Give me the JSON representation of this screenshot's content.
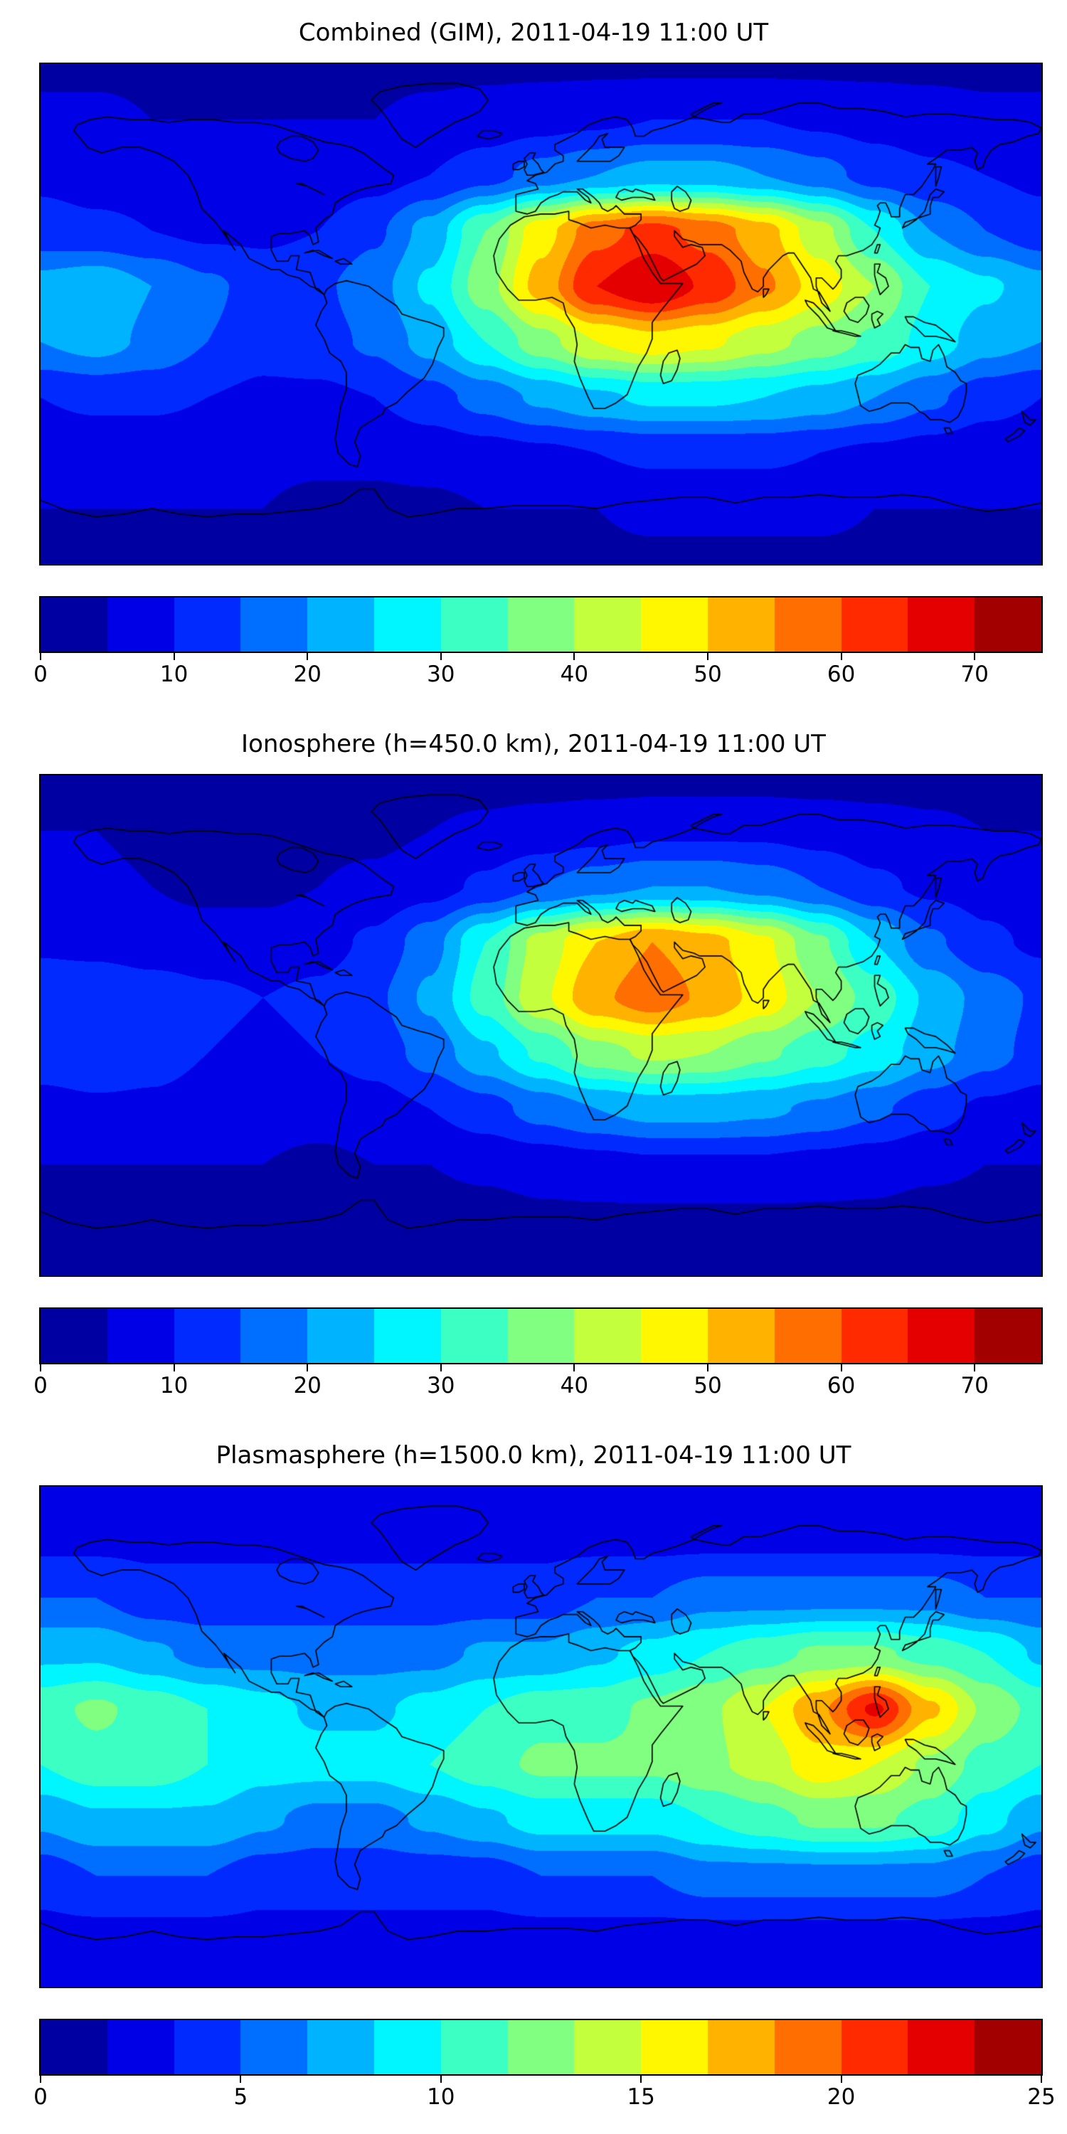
{
  "figure": {
    "background": "#ffffff",
    "coastline_color": "#000000"
  },
  "chart_data": [
    {
      "type": "heatmap",
      "title": "Combined (GIM), 2011-04-19 11:00 UT",
      "colormap": "jet",
      "vmin": 0,
      "vmax": 75,
      "n_levels": 15,
      "colorbar_ticks": [
        0,
        10,
        20,
        30,
        40,
        50,
        60,
        70
      ],
      "lon_range": [
        -180,
        180
      ],
      "lat_range": [
        -90,
        90
      ],
      "lat": [
        90,
        70,
        50,
        30,
        10,
        -10,
        -30,
        -50,
        -70,
        -90
      ],
      "lon": [
        -180,
        -160,
        -140,
        -120,
        -100,
        -80,
        -60,
        -40,
        -20,
        0,
        20,
        40,
        60,
        80,
        100,
        120,
        140,
        160,
        180
      ],
      "values": [
        [
          4,
          4,
          4,
          4,
          4,
          4,
          4,
          4,
          4,
          4,
          4,
          4,
          4,
          4,
          4,
          4,
          4,
          4,
          4
        ],
        [
          6,
          6,
          5,
          5,
          5,
          5,
          5,
          6,
          7,
          8,
          9,
          10,
          10,
          10,
          9,
          8,
          7,
          6,
          6
        ],
        [
          9,
          8,
          8,
          7,
          7,
          7,
          8,
          10,
          13,
          17,
          20,
          22,
          22,
          20,
          17,
          13,
          11,
          10,
          9
        ],
        [
          12,
          11,
          10,
          9,
          9,
          10,
          14,
          22,
          35,
          48,
          58,
          62,
          58,
          52,
          42,
          30,
          20,
          15,
          12
        ],
        [
          22,
          24,
          20,
          16,
          13,
          14,
          18,
          26,
          38,
          52,
          65,
          70,
          64,
          56,
          48,
          40,
          30,
          26,
          22
        ],
        [
          20,
          22,
          19,
          15,
          12,
          13,
          16,
          22,
          30,
          38,
          45,
          48,
          46,
          42,
          38,
          34,
          28,
          22,
          20
        ],
        [
          10,
          11,
          11,
          10,
          9,
          9,
          10,
          13,
          17,
          21,
          24,
          26,
          26,
          25,
          23,
          20,
          16,
          12,
          10
        ],
        [
          7,
          7,
          7,
          7,
          6,
          6,
          6,
          7,
          8,
          9,
          10,
          11,
          11,
          11,
          10,
          9,
          8,
          7,
          7
        ],
        [
          5,
          5,
          5,
          5,
          5,
          4,
          4,
          4,
          5,
          5,
          5,
          6,
          6,
          6,
          6,
          5,
          5,
          5,
          5
        ],
        [
          4,
          4,
          4,
          4,
          4,
          4,
          4,
          4,
          4,
          4,
          4,
          4,
          4,
          4,
          4,
          4,
          4,
          4,
          4
        ]
      ]
    },
    {
      "type": "heatmap",
      "title": "Ionosphere  (h=450.0 km), 2011-04-19 11:00 UT",
      "colormap": "jet",
      "vmin": 0,
      "vmax": 75,
      "n_levels": 15,
      "colorbar_ticks": [
        0,
        10,
        20,
        30,
        40,
        50,
        60,
        70
      ],
      "lon_range": [
        -180,
        180
      ],
      "lat_range": [
        -90,
        90
      ],
      "lat": [
        90,
        70,
        50,
        30,
        10,
        -10,
        -30,
        -50,
        -70,
        -90
      ],
      "lon": [
        -180,
        -160,
        -140,
        -120,
        -100,
        -80,
        -60,
        -40,
        -20,
        0,
        20,
        40,
        60,
        80,
        100,
        120,
        140,
        160,
        180
      ],
      "values": [
        [
          3,
          3,
          3,
          3,
          3,
          3,
          3,
          3,
          3,
          3,
          3,
          3,
          3,
          3,
          3,
          3,
          3,
          3,
          3
        ],
        [
          5,
          5,
          4,
          4,
          4,
          4,
          4,
          5,
          6,
          7,
          8,
          9,
          9,
          9,
          8,
          7,
          6,
          5,
          5
        ],
        [
          7,
          6,
          5,
          4,
          4,
          5,
          6,
          8,
          11,
          15,
          18,
          20,
          20,
          18,
          15,
          11,
          9,
          8,
          7
        ],
        [
          9,
          8,
          7,
          7,
          7,
          8,
          11,
          18,
          30,
          42,
          50,
          55,
          52,
          46,
          36,
          25,
          16,
          11,
          9
        ],
        [
          14,
          15,
          13,
          11,
          10,
          11,
          14,
          21,
          32,
          44,
          54,
          58,
          54,
          48,
          40,
          33,
          24,
          18,
          14
        ],
        [
          13,
          14,
          12,
          10,
          9,
          10,
          12,
          17,
          24,
          31,
          38,
          41,
          40,
          36,
          32,
          28,
          22,
          17,
          13
        ],
        [
          8,
          9,
          9,
          8,
          7,
          7,
          8,
          10,
          13,
          17,
          20,
          22,
          22,
          21,
          19,
          16,
          12,
          9,
          8
        ],
        [
          5,
          5,
          5,
          5,
          5,
          4,
          5,
          5,
          6,
          7,
          8,
          9,
          9,
          9,
          8,
          7,
          6,
          5,
          5
        ],
        [
          3,
          3,
          3,
          3,
          3,
          3,
          3,
          3,
          3,
          4,
          4,
          4,
          4,
          4,
          4,
          4,
          3,
          3,
          3
        ],
        [
          3,
          3,
          3,
          3,
          3,
          3,
          3,
          3,
          3,
          3,
          3,
          3,
          3,
          3,
          3,
          3,
          3,
          3,
          3
        ]
      ]
    },
    {
      "type": "heatmap",
      "title": "Plasmasphere (h=1500.0 km), 2011-04-19 11:00 UT",
      "colormap": "jet",
      "vmin": 0,
      "vmax": 25,
      "n_levels": 15,
      "colorbar_ticks": [
        0,
        5,
        10,
        15,
        20,
        25
      ],
      "lon_range": [
        -180,
        180
      ],
      "lat_range": [
        -90,
        90
      ],
      "lat": [
        90,
        70,
        50,
        30,
        10,
        -10,
        -30,
        -50,
        -70,
        -90
      ],
      "lon": [
        -180,
        -160,
        -140,
        -120,
        -100,
        -80,
        -60,
        -40,
        -20,
        0,
        20,
        40,
        60,
        80,
        100,
        120,
        140,
        160,
        180
      ],
      "values": [
        [
          2,
          2,
          2,
          2,
          2,
          2,
          2,
          2,
          2,
          2,
          2,
          2,
          2,
          2,
          2,
          2,
          2,
          2,
          2
        ],
        [
          3,
          3,
          3,
          3,
          3,
          3,
          3,
          3,
          3,
          3,
          3,
          3,
          3,
          3,
          3,
          3,
          3,
          3,
          3
        ],
        [
          5,
          5,
          4,
          4,
          4,
          4,
          4,
          4,
          4,
          4,
          5,
          5,
          6,
          6,
          6,
          6,
          6,
          5,
          5
        ],
        [
          8,
          8,
          7,
          6,
          6,
          6,
          6,
          6,
          7,
          7,
          8,
          9,
          10,
          11,
          12,
          12,
          11,
          10,
          8
        ],
        [
          11,
          12,
          11,
          10,
          9,
          8,
          8,
          9,
          10,
          11,
          11,
          12,
          13,
          15,
          18,
          22,
          17,
          13,
          11
        ],
        [
          10,
          11,
          11,
          10,
          9,
          9,
          9,
          10,
          11,
          12,
          12,
          12,
          13,
          14,
          16,
          15,
          13,
          11,
          10
        ],
        [
          7,
          8,
          8,
          8,
          7,
          6,
          6,
          7,
          8,
          9,
          9,
          9,
          10,
          11,
          12,
          12,
          11,
          9,
          7
        ],
        [
          4,
          5,
          5,
          5,
          4,
          4,
          4,
          4,
          4,
          5,
          5,
          5,
          6,
          6,
          6,
          6,
          6,
          5,
          4
        ],
        [
          3,
          3,
          3,
          3,
          3,
          3,
          3,
          3,
          3,
          3,
          3,
          3,
          3,
          3,
          3,
          3,
          3,
          3,
          3
        ],
        [
          2,
          2,
          2,
          2,
          2,
          2,
          2,
          2,
          2,
          2,
          2,
          2,
          2,
          2,
          2,
          2,
          2,
          2,
          2
        ]
      ]
    }
  ]
}
